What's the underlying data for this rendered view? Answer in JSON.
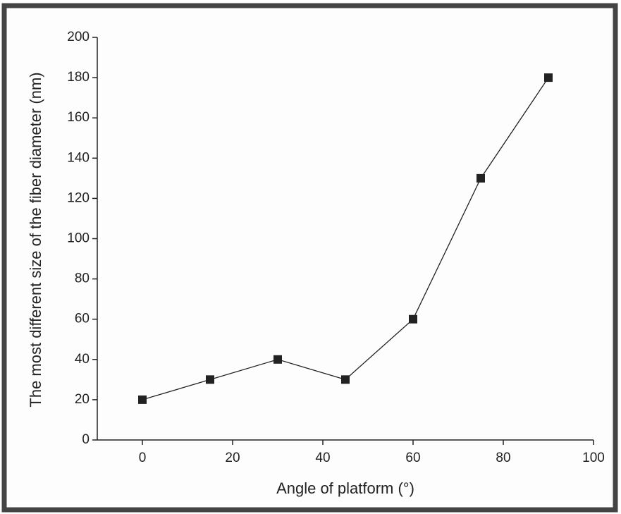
{
  "chart_data": {
    "type": "line",
    "xlabel": "Angle of platform (°)",
    "ylabel": "The most different size of the fiber diameter (nm)",
    "x": [
      0,
      15,
      30,
      45,
      60,
      75,
      90
    ],
    "series": [
      {
        "color": "#222222",
        "values": [
          20,
          30,
          40,
          30,
          60,
          130,
          180
        ]
      }
    ],
    "xlim": [
      -10,
      100
    ],
    "xticks": [
      0,
      20,
      40,
      60,
      80,
      100
    ],
    "ylim": [
      0,
      200
    ],
    "yticks": [
      0,
      20,
      40,
      60,
      80,
      100,
      120,
      140,
      160,
      180,
      200
    ],
    "grid": false
  }
}
